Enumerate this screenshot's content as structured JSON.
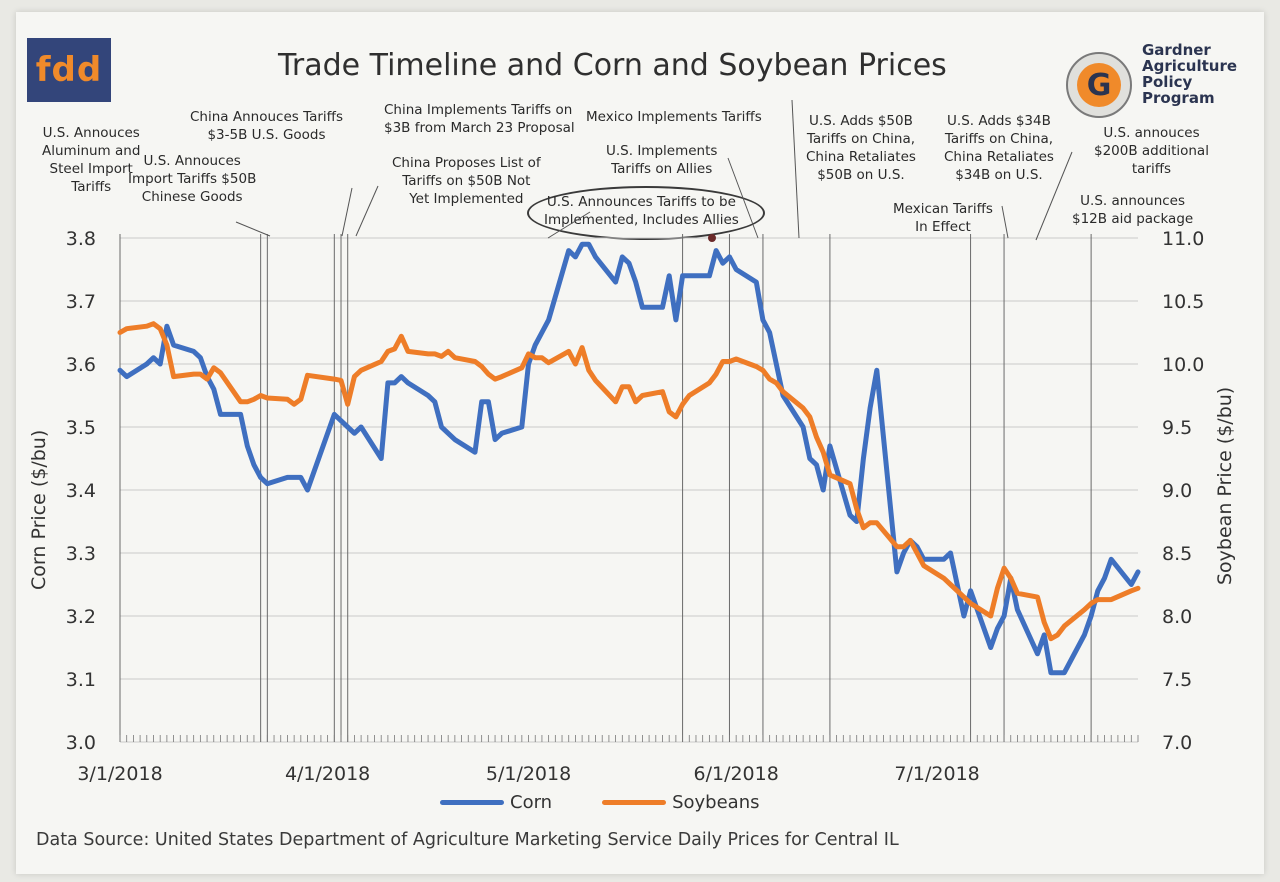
{
  "header": {
    "logo_text": "fdd",
    "title": "Trade Timeline and Corn and Soybean Prices",
    "org_lines": [
      "Gardner",
      "Agriculture",
      "Policy",
      "Program"
    ],
    "org_logo_letter": "G"
  },
  "annotations": [
    {
      "lines": [
        "U.S. Annouces",
        "Aluminum and",
        "Steel Import",
        "Tariffs"
      ]
    },
    {
      "lines": [
        "U.S. Annouces",
        "Import Tariffs $50B",
        "Chinese Goods"
      ]
    },
    {
      "lines": [
        "China Annouces Tariffs",
        "$3-5B U.S. Goods"
      ]
    },
    {
      "lines": [
        "China Implements Tariffs on",
        "$3B from March 23 Proposal"
      ]
    },
    {
      "lines": [
        "China Proposes List of",
        "Tariffs on $50B Not",
        "Yet Implemented"
      ]
    },
    {
      "lines": [
        "Mexico Implements Tariffs"
      ]
    },
    {
      "lines": [
        "U.S. Implements",
        "Tariffs on Allies"
      ]
    },
    {
      "lines": [
        "U.S. Announces Tariffs to be",
        "Implemented, Includes Allies"
      ]
    },
    {
      "lines": [
        "U.S. Adds $50B",
        "Tariffs on China,",
        "China Retaliates",
        "$50B on U.S."
      ]
    },
    {
      "lines": [
        "U.S. Adds $34B",
        "Tariffs on China,",
        "China Retaliates",
        "$34B on U.S."
      ]
    },
    {
      "lines": [
        "Mexican Tariffs",
        "In Effect"
      ]
    },
    {
      "lines": [
        "U.S. annouces",
        "$200B additional",
        "tariffs"
      ]
    },
    {
      "lines": [
        "U.S. announces",
        "$12B aid package"
      ]
    }
  ],
  "legend": {
    "corn": "Corn",
    "soy": "Soybeans"
  },
  "source": "Data Source: United States Department of Agriculture Marketing Service Daily Prices for Central IL",
  "colors": {
    "corn": "#3f6fc0",
    "soy": "#ee7d28",
    "grid": "#c9c9c9",
    "event_line": "#6a6a6a"
  },
  "chart_data": {
    "type": "line",
    "title": "Trade Timeline and Corn and Soybean Prices",
    "xlabel": "",
    "ylabel": "Corn Price ($/bu)",
    "y2label": "Soybean Price ($/bu)",
    "x_range": [
      "2018-03-01",
      "2018-07-31"
    ],
    "x_ticks": [
      {
        "date": "2018-03-01",
        "label": "3/1/2018"
      },
      {
        "date": "2018-04-01",
        "label": "4/1/2018"
      },
      {
        "date": "2018-05-01",
        "label": "5/1/2018"
      },
      {
        "date": "2018-06-01",
        "label": "6/1/2018"
      },
      {
        "date": "2018-07-01",
        "label": "7/1/2018"
      }
    ],
    "ylim": [
      3.0,
      3.8
    ],
    "y_ticks": [
      "3.0",
      "3.1",
      "3.2",
      "3.3",
      "3.4",
      "3.5",
      "3.6",
      "3.7",
      "3.8"
    ],
    "y2lim": [
      7.0,
      11.0
    ],
    "y2_ticks": [
      "7.0",
      "7.5",
      "8.0",
      "8.5",
      "9.0",
      "9.5",
      "10.0",
      "10.5",
      "11.0"
    ],
    "grid": true,
    "legend_position": "bottom",
    "event_dates": [
      "2018-03-01",
      "2018-03-22",
      "2018-03-23",
      "2018-04-02",
      "2018-04-03",
      "2018-04-04",
      "2018-05-24",
      "2018-05-31",
      "2018-06-05",
      "2018-06-15",
      "2018-07-06",
      "2018-07-11",
      "2018-07-24"
    ],
    "series": [
      {
        "name": "Corn",
        "axis": "left",
        "points": [
          [
            "2018-03-01",
            3.59
          ],
          [
            "2018-03-02",
            3.58
          ],
          [
            "2018-03-05",
            3.6
          ],
          [
            "2018-03-06",
            3.61
          ],
          [
            "2018-03-07",
            3.6
          ],
          [
            "2018-03-08",
            3.66
          ],
          [
            "2018-03-09",
            3.63
          ],
          [
            "2018-03-12",
            3.62
          ],
          [
            "2018-03-13",
            3.61
          ],
          [
            "2018-03-14",
            3.58
          ],
          [
            "2018-03-15",
            3.56
          ],
          [
            "2018-03-16",
            3.52
          ],
          [
            "2018-03-19",
            3.52
          ],
          [
            "2018-03-20",
            3.47
          ],
          [
            "2018-03-21",
            3.44
          ],
          [
            "2018-03-22",
            3.42
          ],
          [
            "2018-03-23",
            3.41
          ],
          [
            "2018-03-26",
            3.42
          ],
          [
            "2018-03-27",
            3.42
          ],
          [
            "2018-03-28",
            3.42
          ],
          [
            "2018-03-29",
            3.4
          ],
          [
            "2018-04-02",
            3.52
          ],
          [
            "2018-04-03",
            3.51
          ],
          [
            "2018-04-04",
            3.5
          ],
          [
            "2018-04-05",
            3.49
          ],
          [
            "2018-04-06",
            3.5
          ],
          [
            "2018-04-09",
            3.45
          ],
          [
            "2018-04-10",
            3.57
          ],
          [
            "2018-04-11",
            3.57
          ],
          [
            "2018-04-12",
            3.58
          ],
          [
            "2018-04-13",
            3.57
          ],
          [
            "2018-04-16",
            3.55
          ],
          [
            "2018-04-17",
            3.54
          ],
          [
            "2018-04-18",
            3.5
          ],
          [
            "2018-04-19",
            3.49
          ],
          [
            "2018-04-20",
            3.48
          ],
          [
            "2018-04-23",
            3.46
          ],
          [
            "2018-04-24",
            3.54
          ],
          [
            "2018-04-25",
            3.54
          ],
          [
            "2018-04-26",
            3.48
          ],
          [
            "2018-04-27",
            3.49
          ],
          [
            "2018-04-30",
            3.5
          ],
          [
            "2018-05-01",
            3.6
          ],
          [
            "2018-05-02",
            3.63
          ],
          [
            "2018-05-03",
            3.65
          ],
          [
            "2018-05-04",
            3.67
          ],
          [
            "2018-05-07",
            3.78
          ],
          [
            "2018-05-08",
            3.77
          ],
          [
            "2018-05-09",
            3.79
          ],
          [
            "2018-05-10",
            3.79
          ],
          [
            "2018-05-11",
            3.77
          ],
          [
            "2018-05-14",
            3.73
          ],
          [
            "2018-05-15",
            3.77
          ],
          [
            "2018-05-16",
            3.76
          ],
          [
            "2018-05-17",
            3.73
          ],
          [
            "2018-05-18",
            3.69
          ],
          [
            "2018-05-21",
            3.69
          ],
          [
            "2018-05-22",
            3.74
          ],
          [
            "2018-05-23",
            3.67
          ],
          [
            "2018-05-24",
            3.74
          ],
          [
            "2018-05-25",
            3.74
          ],
          [
            "2018-05-28",
            3.74
          ],
          [
            "2018-05-29",
            3.78
          ],
          [
            "2018-05-30",
            3.76
          ],
          [
            "2018-05-31",
            3.77
          ],
          [
            "2018-06-01",
            3.75
          ],
          [
            "2018-06-04",
            3.73
          ],
          [
            "2018-06-05",
            3.67
          ],
          [
            "2018-06-06",
            3.65
          ],
          [
            "2018-06-07",
            3.6
          ],
          [
            "2018-06-08",
            3.55
          ],
          [
            "2018-06-11",
            3.5
          ],
          [
            "2018-06-12",
            3.45
          ],
          [
            "2018-06-13",
            3.44
          ],
          [
            "2018-06-14",
            3.4
          ],
          [
            "2018-06-15",
            3.47
          ],
          [
            "2018-06-18",
            3.36
          ],
          [
            "2018-06-19",
            3.35
          ],
          [
            "2018-06-20",
            3.45
          ],
          [
            "2018-06-21",
            3.53
          ],
          [
            "2018-06-22",
            3.59
          ],
          [
            "2018-06-25",
            3.27
          ],
          [
            "2018-06-26",
            3.3
          ],
          [
            "2018-06-27",
            3.32
          ],
          [
            "2018-06-28",
            3.31
          ],
          [
            "2018-06-29",
            3.29
          ],
          [
            "2018-07-02",
            3.29
          ],
          [
            "2018-07-03",
            3.3
          ],
          [
            "2018-07-05",
            3.2
          ],
          [
            "2018-07-06",
            3.24
          ],
          [
            "2018-07-09",
            3.15
          ],
          [
            "2018-07-10",
            3.18
          ],
          [
            "2018-07-11",
            3.2
          ],
          [
            "2018-07-12",
            3.26
          ],
          [
            "2018-07-13",
            3.21
          ],
          [
            "2018-07-16",
            3.14
          ],
          [
            "2018-07-17",
            3.17
          ],
          [
            "2018-07-18",
            3.11
          ],
          [
            "2018-07-19",
            3.11
          ],
          [
            "2018-07-20",
            3.11
          ],
          [
            "2018-07-23",
            3.17
          ],
          [
            "2018-07-24",
            3.2
          ],
          [
            "2018-07-25",
            3.24
          ],
          [
            "2018-07-26",
            3.26
          ],
          [
            "2018-07-27",
            3.29
          ],
          [
            "2018-07-30",
            3.25
          ],
          [
            "2018-07-31",
            3.27
          ]
        ]
      },
      {
        "name": "Soybeans",
        "axis": "right",
        "points": [
          [
            "2018-03-01",
            10.25
          ],
          [
            "2018-03-02",
            10.28
          ],
          [
            "2018-03-05",
            10.3
          ],
          [
            "2018-03-06",
            10.32
          ],
          [
            "2018-03-07",
            10.28
          ],
          [
            "2018-03-08",
            10.15
          ],
          [
            "2018-03-09",
            9.9
          ],
          [
            "2018-03-12",
            9.92
          ],
          [
            "2018-03-13",
            9.92
          ],
          [
            "2018-03-14",
            9.88
          ],
          [
            "2018-03-15",
            9.97
          ],
          [
            "2018-03-16",
            9.93
          ],
          [
            "2018-03-19",
            9.7
          ],
          [
            "2018-03-20",
            9.7
          ],
          [
            "2018-03-21",
            9.72
          ],
          [
            "2018-03-22",
            9.75
          ],
          [
            "2018-03-23",
            9.73
          ],
          [
            "2018-03-26",
            9.72
          ],
          [
            "2018-03-27",
            9.68
          ],
          [
            "2018-03-28",
            9.72
          ],
          [
            "2018-03-29",
            9.91
          ],
          [
            "2018-04-02",
            9.88
          ],
          [
            "2018-04-03",
            9.87
          ],
          [
            "2018-04-04",
            9.68
          ],
          [
            "2018-04-05",
            9.9
          ],
          [
            "2018-04-06",
            9.95
          ],
          [
            "2018-04-09",
            10.02
          ],
          [
            "2018-04-10",
            10.1
          ],
          [
            "2018-04-11",
            10.12
          ],
          [
            "2018-04-12",
            10.22
          ],
          [
            "2018-04-13",
            10.1
          ],
          [
            "2018-04-16",
            10.08
          ],
          [
            "2018-04-17",
            10.08
          ],
          [
            "2018-04-18",
            10.06
          ],
          [
            "2018-04-19",
            10.1
          ],
          [
            "2018-04-20",
            10.05
          ],
          [
            "2018-04-23",
            10.02
          ],
          [
            "2018-04-24",
            9.98
          ],
          [
            "2018-04-25",
            9.92
          ],
          [
            "2018-04-26",
            9.88
          ],
          [
            "2018-04-27",
            9.9
          ],
          [
            "2018-04-30",
            9.97
          ],
          [
            "2018-05-01",
            10.08
          ],
          [
            "2018-05-02",
            10.05
          ],
          [
            "2018-05-03",
            10.05
          ],
          [
            "2018-05-04",
            10.01
          ],
          [
            "2018-05-07",
            10.1
          ],
          [
            "2018-05-08",
            10.0
          ],
          [
            "2018-05-09",
            10.13
          ],
          [
            "2018-05-10",
            9.95
          ],
          [
            "2018-05-11",
            9.87
          ],
          [
            "2018-05-14",
            9.7
          ],
          [
            "2018-05-15",
            9.82
          ],
          [
            "2018-05-16",
            9.82
          ],
          [
            "2018-05-17",
            9.7
          ],
          [
            "2018-05-18",
            9.75
          ],
          [
            "2018-05-21",
            9.78
          ],
          [
            "2018-05-22",
            9.62
          ],
          [
            "2018-05-23",
            9.58
          ],
          [
            "2018-05-24",
            9.68
          ],
          [
            "2018-05-25",
            9.75
          ],
          [
            "2018-05-28",
            9.85
          ],
          [
            "2018-05-29",
            9.92
          ],
          [
            "2018-05-30",
            10.02
          ],
          [
            "2018-05-31",
            10.02
          ],
          [
            "2018-06-01",
            10.04
          ],
          [
            "2018-06-04",
            9.98
          ],
          [
            "2018-06-05",
            9.95
          ],
          [
            "2018-06-06",
            9.88
          ],
          [
            "2018-06-07",
            9.85
          ],
          [
            "2018-06-08",
            9.78
          ],
          [
            "2018-06-11",
            9.65
          ],
          [
            "2018-06-12",
            9.58
          ],
          [
            "2018-06-13",
            9.42
          ],
          [
            "2018-06-14",
            9.3
          ],
          [
            "2018-06-15",
            9.12
          ],
          [
            "2018-06-18",
            9.05
          ],
          [
            "2018-06-19",
            8.85
          ],
          [
            "2018-06-20",
            8.7
          ],
          [
            "2018-06-21",
            8.74
          ],
          [
            "2018-06-22",
            8.74
          ],
          [
            "2018-06-25",
            8.55
          ],
          [
            "2018-06-26",
            8.55
          ],
          [
            "2018-06-27",
            8.6
          ],
          [
            "2018-06-28",
            8.5
          ],
          [
            "2018-06-29",
            8.4
          ],
          [
            "2018-07-02",
            8.3
          ],
          [
            "2018-07-03",
            8.25
          ],
          [
            "2018-07-05",
            8.15
          ],
          [
            "2018-07-06",
            8.1
          ],
          [
            "2018-07-09",
            8.0
          ],
          [
            "2018-07-10",
            8.22
          ],
          [
            "2018-07-11",
            8.38
          ],
          [
            "2018-07-12",
            8.3
          ],
          [
            "2018-07-13",
            8.18
          ],
          [
            "2018-07-16",
            8.15
          ],
          [
            "2018-07-17",
            7.95
          ],
          [
            "2018-07-18",
            7.82
          ],
          [
            "2018-07-19",
            7.85
          ],
          [
            "2018-07-20",
            7.92
          ],
          [
            "2018-07-23",
            8.05
          ],
          [
            "2018-07-24",
            8.1
          ],
          [
            "2018-07-25",
            8.13
          ],
          [
            "2018-07-26",
            8.13
          ],
          [
            "2018-07-27",
            8.13
          ],
          [
            "2018-07-30",
            8.2
          ],
          [
            "2018-07-31",
            8.22
          ]
        ]
      }
    ]
  }
}
